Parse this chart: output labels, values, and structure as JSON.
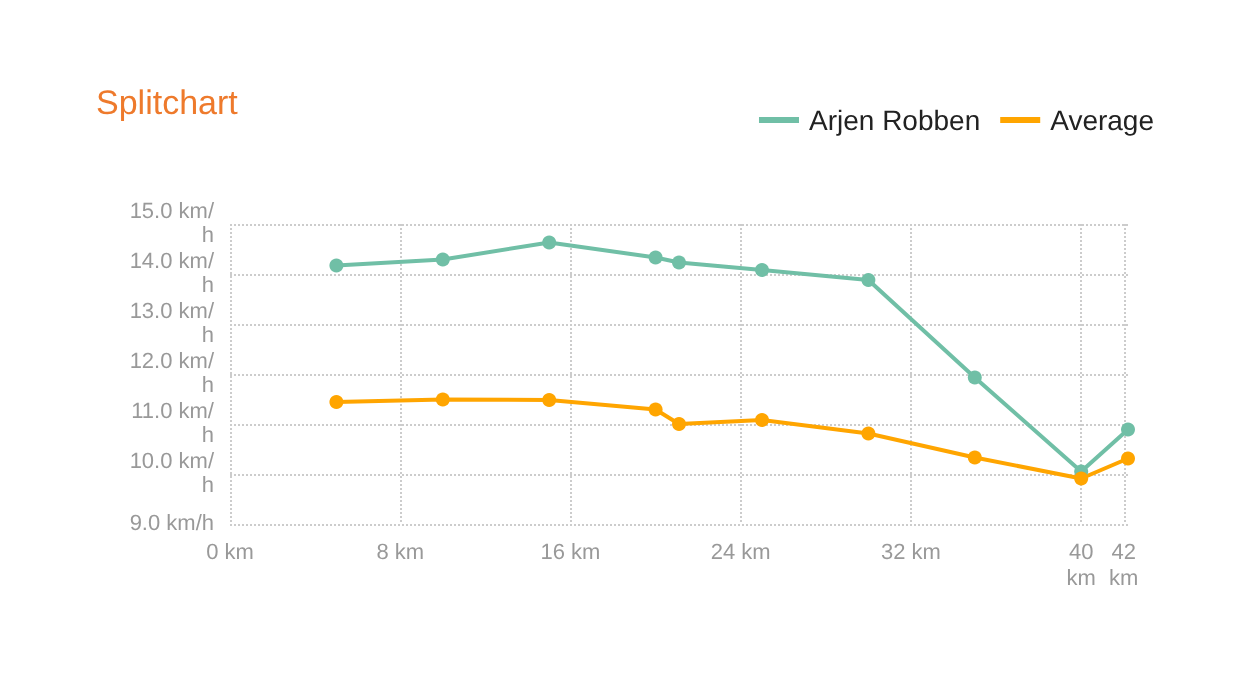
{
  "chart_data": {
    "type": "line",
    "title": "Splitchart",
    "x": [
      5,
      10,
      15,
      20,
      21.1,
      25,
      30,
      35,
      40,
      42.2
    ],
    "series": [
      {
        "name": "Arjen Robben",
        "color": "#70bfa6",
        "values": [
          14.17,
          14.29,
          14.63,
          14.33,
          14.23,
          14.08,
          13.88,
          11.93,
          10.05,
          10.89
        ]
      },
      {
        "name": "Average",
        "color": "#ffa500",
        "values": [
          11.44,
          11.49,
          11.48,
          11.29,
          11.0,
          11.08,
          10.81,
          10.33,
          9.91,
          10.31
        ]
      }
    ],
    "xlim": [
      0,
      42.2
    ],
    "xticks": [
      {
        "value": 0,
        "label": "0 km"
      },
      {
        "value": 8,
        "label": "8 km"
      },
      {
        "value": 16,
        "label": "16 km"
      },
      {
        "value": 24,
        "label": "24 km"
      },
      {
        "value": 32,
        "label": "32 km"
      },
      {
        "value": 40,
        "label": "40 km"
      },
      {
        "value": 42,
        "label": "42 km"
      }
    ],
    "ylim": [
      9,
      15
    ],
    "yticks": [
      {
        "value": 9,
        "label": "9.0 km/h"
      },
      {
        "value": 10,
        "label": "10.0 km/h"
      },
      {
        "value": 11,
        "label": "11.0 km/h"
      },
      {
        "value": 12,
        "label": "12.0 km/h"
      },
      {
        "value": 13,
        "label": "13.0 km/h"
      },
      {
        "value": 14,
        "label": "14.0 km/h"
      },
      {
        "value": 15,
        "label": "15.0 km/h"
      }
    ],
    "grid": true,
    "legend": "top right",
    "marker": "circle",
    "line_style": "solid"
  }
}
